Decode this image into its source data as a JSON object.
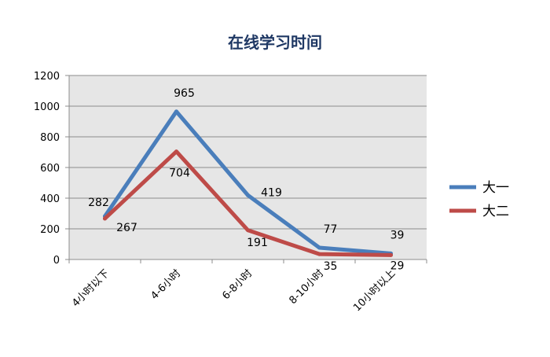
{
  "chart_data": {
    "type": "line",
    "title": "在线学习时间",
    "xlabel": "",
    "ylabel": "",
    "categories": [
      "4小时以下",
      "4-6小时",
      "6-8小时",
      "8-10小时",
      "10小时以上"
    ],
    "ylim": [
      0,
      1200
    ],
    "yticks": [
      0,
      200,
      400,
      600,
      800,
      1000,
      1200
    ],
    "grid": true,
    "legend": "right",
    "series": [
      {
        "name": "大一",
        "values": [
          282,
          965,
          419,
          77,
          39
        ],
        "color": "#4a7ebb"
      },
      {
        "name": "大二",
        "values": [
          267,
          704,
          191,
          35,
          29
        ],
        "color": "#be4b48"
      }
    ]
  }
}
